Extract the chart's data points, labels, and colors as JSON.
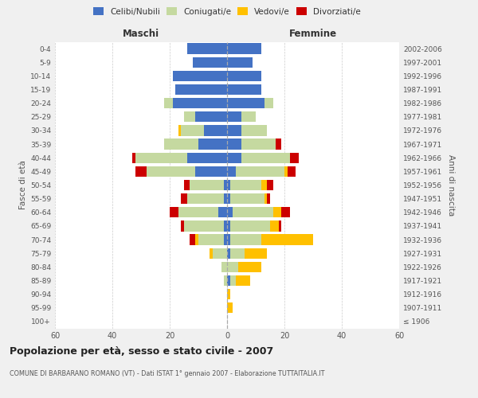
{
  "age_groups": [
    "100+",
    "95-99",
    "90-94",
    "85-89",
    "80-84",
    "75-79",
    "70-74",
    "65-69",
    "60-64",
    "55-59",
    "50-54",
    "45-49",
    "40-44",
    "35-39",
    "30-34",
    "25-29",
    "20-24",
    "15-19",
    "10-14",
    "5-9",
    "0-4"
  ],
  "birth_years": [
    "≤ 1906",
    "1907-1911",
    "1912-1916",
    "1917-1921",
    "1922-1926",
    "1927-1931",
    "1932-1936",
    "1937-1941",
    "1942-1946",
    "1947-1951",
    "1952-1956",
    "1957-1961",
    "1962-1966",
    "1967-1971",
    "1972-1976",
    "1977-1981",
    "1982-1986",
    "1987-1991",
    "1992-1996",
    "1997-2001",
    "2002-2006"
  ],
  "maschi": {
    "celibi": [
      0,
      0,
      0,
      0,
      0,
      0,
      1,
      1,
      3,
      1,
      1,
      11,
      14,
      10,
      8,
      11,
      19,
      18,
      19,
      12,
      14
    ],
    "coniugati": [
      0,
      0,
      0,
      1,
      2,
      5,
      9,
      14,
      14,
      13,
      12,
      17,
      18,
      12,
      8,
      4,
      3,
      0,
      0,
      0,
      0
    ],
    "vedovi": [
      0,
      0,
      0,
      0,
      0,
      1,
      1,
      0,
      0,
      0,
      0,
      0,
      0,
      0,
      1,
      0,
      0,
      0,
      0,
      0,
      0
    ],
    "divorziati": [
      0,
      0,
      0,
      0,
      0,
      0,
      2,
      1,
      3,
      2,
      2,
      4,
      1,
      0,
      0,
      0,
      0,
      0,
      0,
      0,
      0
    ]
  },
  "femmine": {
    "nubili": [
      0,
      0,
      0,
      1,
      0,
      1,
      1,
      1,
      2,
      1,
      1,
      3,
      5,
      5,
      5,
      5,
      13,
      12,
      12,
      9,
      12
    ],
    "coniugate": [
      0,
      0,
      0,
      2,
      4,
      5,
      11,
      14,
      14,
      12,
      11,
      17,
      17,
      12,
      9,
      5,
      3,
      0,
      0,
      0,
      0
    ],
    "vedove": [
      0,
      2,
      1,
      5,
      8,
      8,
      18,
      3,
      3,
      1,
      2,
      1,
      0,
      0,
      0,
      0,
      0,
      0,
      0,
      0,
      0
    ],
    "divorziate": [
      0,
      0,
      0,
      0,
      0,
      0,
      0,
      1,
      3,
      1,
      2,
      3,
      3,
      2,
      0,
      0,
      0,
      0,
      0,
      0,
      0
    ]
  },
  "colors": {
    "celibi": "#4472c4",
    "coniugati": "#c5d9a0",
    "vedovi": "#ffc000",
    "divorziati": "#cc0000"
  },
  "xlim": 60,
  "title": "Popolazione per età, sesso e stato civile - 2007",
  "subtitle": "COMUNE DI BARBARANO ROMANO (VT) - Dati ISTAT 1° gennaio 2007 - Elaborazione TUTTAITALIA.IT",
  "ylabel_left": "Fasce di età",
  "ylabel_right": "Anni di nascita",
  "xlabel_maschi": "Maschi",
  "xlabel_femmine": "Femmine",
  "bg_color": "#f0f0f0",
  "plot_bg": "#ffffff"
}
